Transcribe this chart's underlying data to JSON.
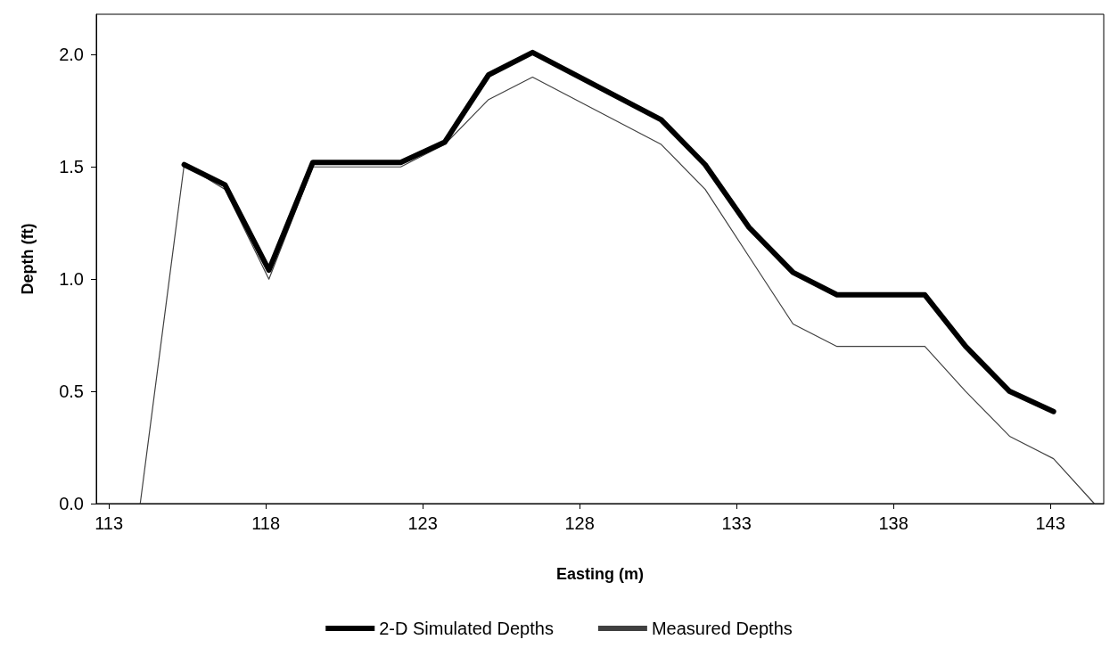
{
  "chart_data": {
    "type": "line",
    "xlabel": "Easting (m)",
    "ylabel": "Depth (ft)",
    "xlim": [
      112.6,
      144.7
    ],
    "xticks": [
      113,
      118,
      123,
      128,
      133,
      138,
      143
    ],
    "ylim": [
      0,
      2.18
    ],
    "yticks": [
      {
        "value": 0,
        "label": "0.0"
      },
      0.5,
      {
        "value": 1,
        "label": "1.0"
      },
      1.5,
      {
        "value": 2,
        "label": "2.0"
      }
    ],
    "grid": false,
    "legend": "bottom",
    "marker": "none",
    "line_style": "solid",
    "series": [
      {
        "name": "2-D Simulated Depths",
        "color": "#000000",
        "x": [
          115.4,
          116.7,
          118.1,
          119.5,
          120.9,
          122.3,
          123.7,
          125.1,
          126.5,
          130.6,
          132.0,
          133.4,
          134.8,
          136.2,
          137.6,
          139.0,
          140.3,
          141.7,
          143.1
        ],
        "values": [
          1.51,
          1.42,
          1.04,
          1.52,
          1.52,
          1.52,
          1.61,
          1.91,
          2.01,
          1.71,
          1.51,
          1.23,
          1.03,
          0.93,
          0.93,
          0.93,
          0.7,
          0.5,
          0.41
        ]
      },
      {
        "name": "Measured Depths",
        "color": "#404040",
        "x": [
          114.0,
          115.4,
          116.7,
          118.1,
          119.5,
          120.9,
          122.3,
          123.7,
          125.1,
          126.5,
          130.6,
          132.0,
          133.4,
          134.8,
          136.2,
          137.6,
          139.0,
          140.3,
          141.7,
          143.1,
          144.4
        ],
        "values": [
          0.0,
          1.51,
          1.4,
          1.0,
          1.5,
          1.5,
          1.5,
          1.6,
          1.8,
          1.9,
          1.6,
          1.4,
          1.1,
          0.8,
          0.7,
          0.7,
          0.7,
          0.5,
          0.3,
          0.2,
          0.0
        ]
      }
    ]
  }
}
